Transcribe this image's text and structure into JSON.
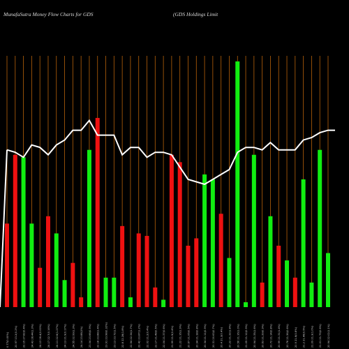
{
  "header": {
    "title": "MunafaSutra  Money Flow  Charts for GDS",
    "company": "(GDS Holdings Limit"
  },
  "colors": {
    "background": "#000000",
    "vline": "#b8620a",
    "up": "#11ee11",
    "down": "#ee1111",
    "line": "#ffffff"
  },
  "chart_data": {
    "type": "bar",
    "ylim": [
      0,
      100
    ],
    "line_ylim": [
      0,
      100
    ],
    "grid": true,
    "series": [
      {
        "values": [
          34,
          62,
          61,
          34,
          16,
          37,
          30,
          11,
          18,
          4,
          64,
          77,
          12,
          12,
          33,
          4,
          30,
          29,
          8,
          3,
          62,
          59,
          25,
          28,
          54,
          52,
          38,
          20,
          100,
          2,
          62,
          10,
          37,
          25,
          19,
          12,
          52,
          10,
          64,
          22
        ]
      },
      {
        "values": [
          64,
          63,
          61,
          66,
          65,
          62,
          66,
          68,
          72,
          72,
          76,
          70,
          70,
          70,
          62,
          65,
          65,
          61,
          63,
          63,
          62,
          57,
          52,
          51,
          50,
          52,
          54,
          56,
          63,
          65,
          65,
          64,
          67,
          64,
          64,
          64,
          68,
          69,
          71,
          72
        ]
      }
    ],
    "bar_colors": [
      "red",
      "red",
      "green",
      "green",
      "red",
      "red",
      "green",
      "green",
      "red",
      "red",
      "green",
      "red",
      "green",
      "green",
      "red",
      "green",
      "red",
      "red",
      "red",
      "green",
      "red",
      "red",
      "red",
      "red",
      "green",
      "green",
      "red",
      "green",
      "green",
      "green",
      "green",
      "red",
      "green",
      "red",
      "green",
      "red",
      "green",
      "green",
      "green",
      "green"
    ],
    "x_labels": [
      "0.77(0.00%)",
      "20.97 13.2(0.2%)",
      "22.15 27.82(0.4%)",
      "24.43 28.44(1.3%)",
      "24.13 28.4(0.00%)",
      "24.17 22.7(0.16%)",
      "24.11 22.6(1.27%)",
      "24.13 21.9(0.17%)",
      "24.55 22.99(1.3%)",
      "24.14 23.88(1%)",
      "23.04 23.66(0.9%)",
      "22.18 23.88(1.4%)",
      "23.91 23.98(0.32%)",
      "23.13 23.72(1.5%)",
      "22.8 22.28(1.8%)",
      "22.54 22.34(1.7%)",
      "22.42 23.87(1.2%)",
      "22.02 21.2(0.4%)",
      "22.17 21.48(0.5%)",
      "22.04 21.37(0.6%)",
      "21.99 21.5(0.4%)",
      "21.22 21.16(1.9%)",
      "20.67 21.06(0.5%)",
      "20.94 21.18(0.8%)",
      "20.34 21.11(0.9%)",
      "20.31 20.63(0.7%)",
      "20.4 21.3(0.4%)",
      "20.22 21.32(1.8%)",
      "20.56 21.16(1.0%)",
      "21.05 21.12(0.9%)",
      "20.94 21.35(1.6%)",
      "20.63 21.39(0.9%)",
      "20.72 21.14(0.8%)",
      "20.99 21.31(1.4%)",
      "20.76 21.36(0.6%)",
      "20.9 21.6(0.8%)",
      "21.2 21.46(0.5%)",
      "21.09 21.3(1.0%)",
      "21.01 21.79(0.6%)",
      "20.94 22.02(1.1%)"
    ]
  }
}
